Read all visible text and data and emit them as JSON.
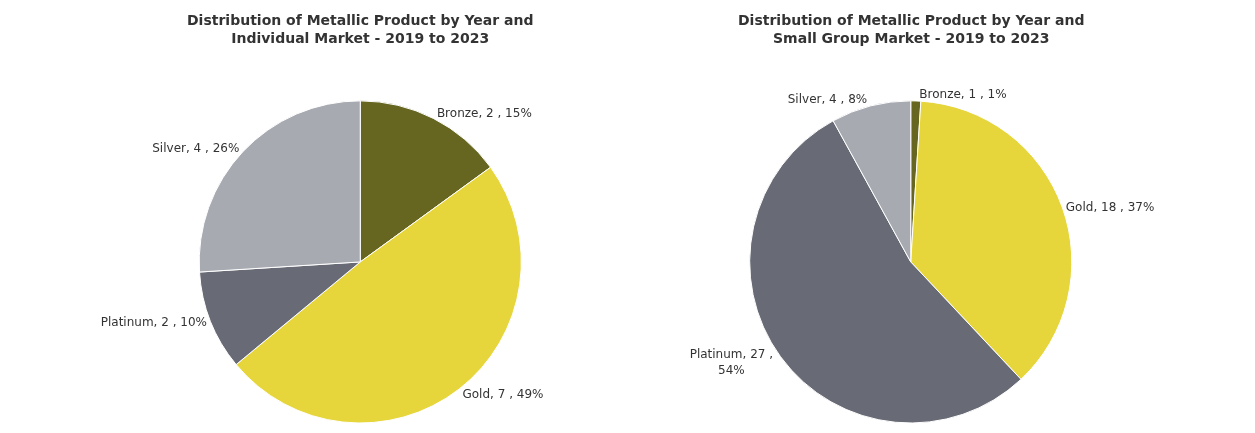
{
  "chart_data": [
    {
      "type": "pie",
      "title": "Distribution of Metallic Product by Year and\nIndividual Market - 2019 to 2023",
      "categories": [
        "Bronze",
        "Gold",
        "Platinum",
        "Silver"
      ],
      "values": [
        15,
        49,
        10,
        26
      ],
      "value_labels": [
        "2 , 15%",
        "7 , 49%",
        "2 , 10%",
        "4 , 26%"
      ],
      "colors": [
        "#666621",
        "#e6d63c",
        "#686b75",
        "#a8aab2"
      ],
      "legend": false
    },
    {
      "type": "pie",
      "title": "Distribution of Metallic Product by Year and\nSmall Group Market - 2019 to 2023",
      "categories": [
        "Bronze",
        "Gold",
        "Platinum",
        "Silver"
      ],
      "values": [
        1,
        37,
        54,
        8
      ],
      "value_labels": [
        "1 , 1%",
        "18 , 37%",
        "27 ,\n54%",
        "4 , 8%"
      ],
      "colors": [
        "#666621",
        "#e6d63c",
        "#686b75",
        "#a8aab2"
      ],
      "legend": false
    }
  ]
}
